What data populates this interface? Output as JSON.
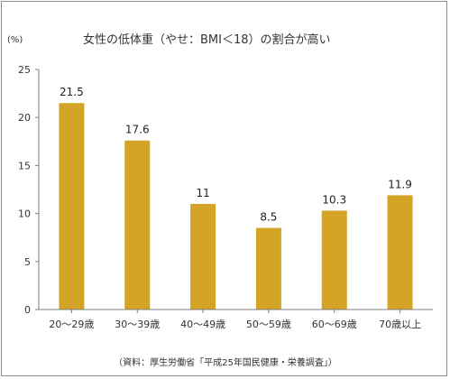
{
  "chart_data": {
    "type": "bar",
    "title": "女性の低体重（やせ：BMI＜18）の割合が高い",
    "y_unit": "(%)",
    "categories": [
      "20～29歳",
      "30～39歳",
      "40～49歳",
      "50～59歳",
      "60～69歳",
      "70歳以上"
    ],
    "values": [
      21.5,
      17.6,
      11,
      8.5,
      10.3,
      11.9
    ],
    "data_labels": [
      "21.5",
      "17.6",
      "11",
      "8.5",
      "10.3",
      "11.9"
    ],
    "ylim": [
      0,
      25
    ],
    "yticks": [
      "0",
      "5",
      "10",
      "15",
      "20",
      "25"
    ],
    "grid": false,
    "legend": "none",
    "source": "（資料：厚生労働省「平成25年国民健康・栄養調査」）",
    "colors": {
      "bar": "#D4A427",
      "axis": "#7f7f7f",
      "frame": "#8c8c8c"
    }
  }
}
